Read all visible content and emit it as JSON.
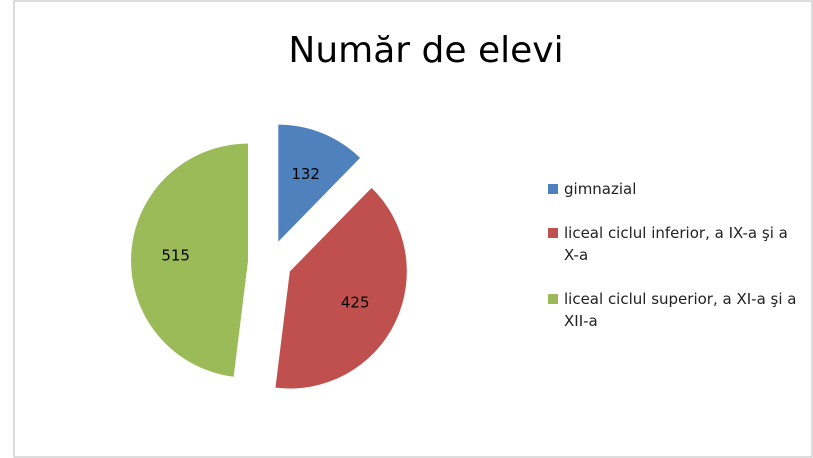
{
  "chart_data": {
    "type": "pie",
    "title": "Număr de elevi",
    "categories": [
      "gimnazial",
      "liceal ciclul inferior, a IX-a şi a X-a",
      "liceal ciclul superior, a XI-a şi a XII-a"
    ],
    "values": [
      132,
      425,
      515
    ],
    "colors": [
      "#4f81bd",
      "#c0504d",
      "#9bbb59"
    ],
    "legend": "right"
  }
}
